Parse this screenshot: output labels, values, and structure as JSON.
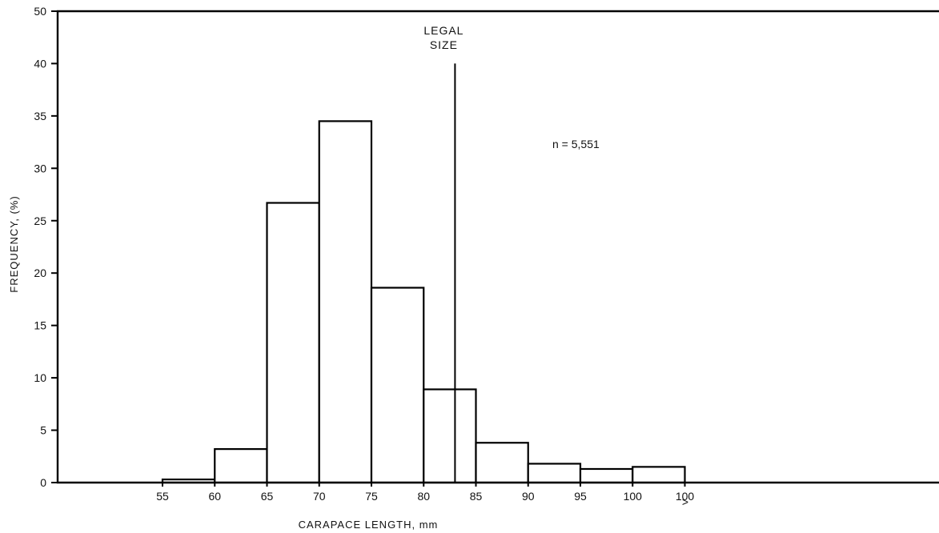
{
  "chart_data": {
    "type": "bar",
    "title": "",
    "xlabel": "CARAPACE LENGTH, mm",
    "ylabel": "FREQUENCY, (%)",
    "ylim": [
      0,
      50
    ],
    "yticks": [
      "0",
      "5",
      "10",
      "15",
      "20",
      "25",
      "30",
      "35",
      "40",
      "50"
    ],
    "xticks": [
      "55",
      "60",
      "65",
      "70",
      "75",
      "80",
      "85",
      "90",
      "95",
      "100",
      "100"
    ],
    "overflow_symbol": ">",
    "bins": [
      {
        "start": 55,
        "end": 60,
        "value": 0.3
      },
      {
        "start": 60,
        "end": 65,
        "value": 3.2
      },
      {
        "start": 65,
        "end": 70,
        "value": 26.7
      },
      {
        "start": 70,
        "end": 75,
        "value": 34.5
      },
      {
        "start": 75,
        "end": 80,
        "value": 18.6
      },
      {
        "start": 80,
        "end": 85,
        "value": 8.9
      },
      {
        "start": 85,
        "end": 90,
        "value": 3.8
      },
      {
        "start": 90,
        "end": 95,
        "value": 1.8
      },
      {
        "start": 95,
        "end": 100,
        "value": 1.3
      },
      {
        "start": 100,
        "end": 105,
        "value": 1.5
      }
    ],
    "legal_size": {
      "x": 83,
      "top": 40,
      "label_line1": "LEGAL",
      "label_line2": "SIZE"
    },
    "sample_size": "n = 5,551",
    "grid": false,
    "legend": "none"
  }
}
